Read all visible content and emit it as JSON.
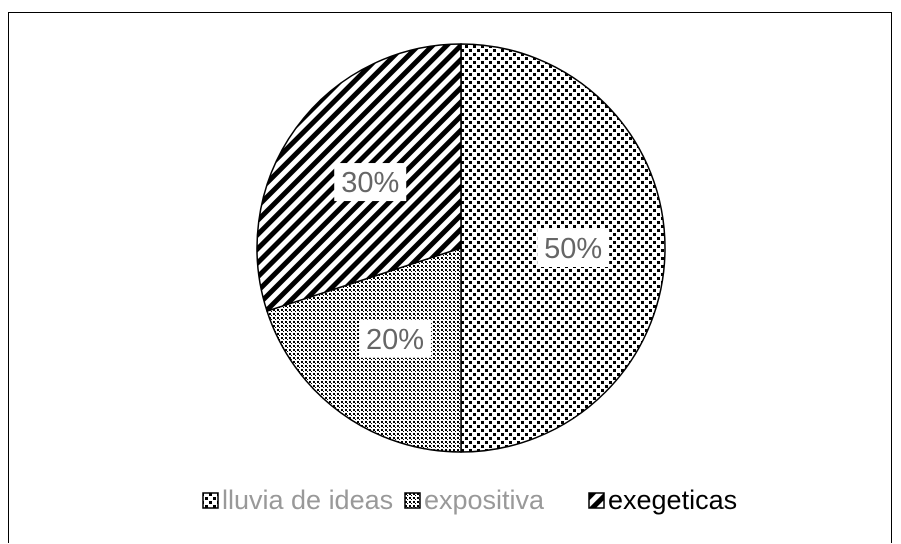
{
  "chart_data": {
    "type": "pie",
    "slices": [
      {
        "label": "lluvia de ideas",
        "value": 50,
        "display": "50%",
        "pattern": "dots-large"
      },
      {
        "label": "expositiva",
        "value": 20,
        "display": "20%",
        "pattern": "dots-small"
      },
      {
        "label": "exegeticas",
        "value": 30,
        "display": "30%",
        "pattern": "diagonal-hatch"
      }
    ],
    "legend": {
      "position": "bottom",
      "items": [
        {
          "label": "lluvia de ideas",
          "color": "#999999"
        },
        {
          "label": "expositiva",
          "color": "#999999"
        },
        {
          "label": "exegeticas",
          "color": "#000000"
        }
      ]
    },
    "start_angle_deg": 0,
    "direction": "clockwise"
  }
}
